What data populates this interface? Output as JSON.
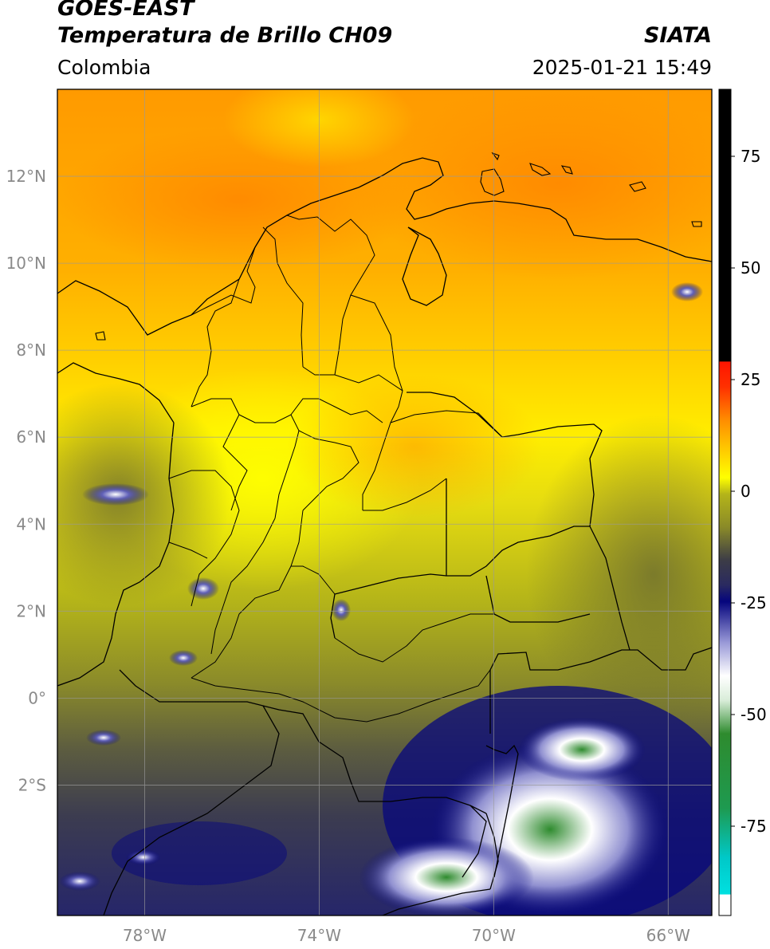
{
  "header": {
    "satellite": "GOES-EAST",
    "product": "Temperatura de Brillo CH09",
    "brand": "SIATA",
    "region": "Colombia",
    "datetime": "2025-01-21 15:49"
  },
  "map": {
    "lon_range": [
      -80.0,
      -65.0
    ],
    "lat_range": [
      -5.0,
      14.0
    ],
    "lat_ticks": [
      {
        "value": 12,
        "label": "12°N"
      },
      {
        "value": 10,
        "label": "10°N"
      },
      {
        "value": 8,
        "label": "8°N"
      },
      {
        "value": 6,
        "label": "6°N"
      },
      {
        "value": 4,
        "label": "4°N"
      },
      {
        "value": 2,
        "label": "2°N"
      },
      {
        "value": 0,
        "label": "0°"
      },
      {
        "value": -2,
        "label": "2°S"
      }
    ],
    "lon_ticks": [
      {
        "value": -78,
        "label": "78°W"
      },
      {
        "value": -74,
        "label": "74°W"
      },
      {
        "value": -70,
        "label": "70°W"
      },
      {
        "value": -66,
        "label": "66°W"
      }
    ],
    "gridlines": true
  },
  "colorbar": {
    "range": [
      -95,
      90
    ],
    "ticks": [
      {
        "value": 75,
        "label": "75"
      },
      {
        "value": 50,
        "label": "50"
      },
      {
        "value": 25,
        "label": "25"
      },
      {
        "value": 0,
        "label": "0"
      },
      {
        "value": -25,
        "label": "-25"
      },
      {
        "value": -50,
        "label": "-50"
      },
      {
        "value": -75,
        "label": "-75"
      }
    ],
    "colors": {
      "black": "#000000",
      "red": "#ff1500",
      "orange": "#ff8c00",
      "yellow": "#ffff00",
      "olive": "#b4b419",
      "gray": "#3c3c46",
      "navy": "#05057d",
      "white": "#ffffff",
      "green": "#2e8b2e",
      "cyan": "#00e0e0"
    }
  }
}
